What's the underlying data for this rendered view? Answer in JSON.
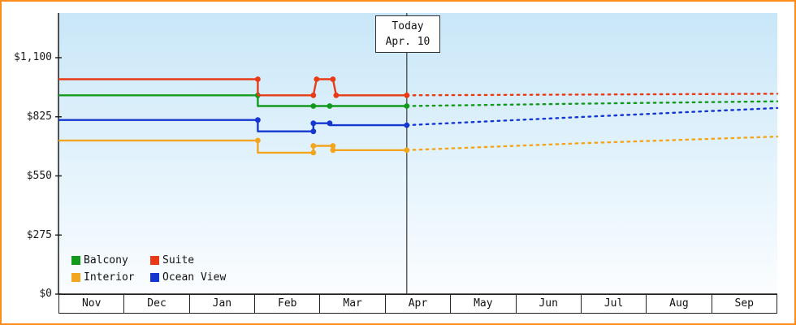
{
  "chart_data": {
    "type": "line",
    "x_axis": {
      "months": [
        "Nov",
        "Dec",
        "Jan",
        "Feb",
        "Mar",
        "Apr",
        "May",
        "Jun",
        "Jul",
        "Aug",
        "Sep"
      ]
    },
    "y_axis": {
      "tick_labels": [
        "$0",
        "$275",
        "$550",
        "$825",
        "$1,100"
      ],
      "tick_values": [
        0,
        275,
        550,
        825,
        1100
      ],
      "min": 0,
      "max": 1100
    },
    "today": {
      "label": "Today",
      "date": "Apr. 10",
      "month_position": 5.33
    },
    "series": [
      {
        "id": "interior",
        "name": "Interior",
        "color": "#f2a51e",
        "history": [
          [
            0,
            715
          ],
          [
            3.05,
            715
          ],
          [
            3.05,
            658
          ],
          [
            3.9,
            658
          ],
          [
            3.9,
            690
          ],
          [
            4.2,
            690
          ],
          [
            4.2,
            670
          ],
          [
            5.33,
            670
          ]
        ],
        "forecast": [
          [
            5.33,
            670
          ],
          [
            8,
            702
          ],
          [
            11,
            733
          ]
        ],
        "markers": [
          [
            3.05,
            715
          ],
          [
            3.9,
            658
          ],
          [
            3.9,
            690
          ],
          [
            4.2,
            690
          ],
          [
            4.2,
            670
          ],
          [
            5.33,
            670
          ]
        ]
      },
      {
        "id": "oceanview",
        "name": "Ocean View",
        "color": "#1537cf",
        "history": [
          [
            0,
            810
          ],
          [
            3.05,
            810
          ],
          [
            3.05,
            757
          ],
          [
            3.9,
            757
          ],
          [
            3.9,
            795
          ],
          [
            4.15,
            795
          ],
          [
            4.15,
            786
          ],
          [
            5.33,
            786
          ]
        ],
        "forecast": [
          [
            5.33,
            786
          ],
          [
            8,
            824
          ],
          [
            11,
            866
          ]
        ],
        "markers": [
          [
            3.05,
            810
          ],
          [
            3.9,
            757
          ],
          [
            3.9,
            795
          ],
          [
            4.15,
            795
          ],
          [
            5.33,
            786
          ]
        ]
      },
      {
        "id": "balcony",
        "name": "Balcony",
        "color": "#139a1d",
        "history": [
          [
            0,
            925
          ],
          [
            3.05,
            925
          ],
          [
            3.05,
            875
          ],
          [
            5.33,
            875
          ]
        ],
        "forecast": [
          [
            5.33,
            875
          ],
          [
            8,
            886
          ],
          [
            11,
            897
          ]
        ],
        "markers": [
          [
            3.05,
            925
          ],
          [
            3.9,
            875
          ],
          [
            4.15,
            875
          ],
          [
            5.33,
            875
          ]
        ]
      },
      {
        "id": "suite",
        "name": "Suite",
        "color": "#e83a17",
        "history": [
          [
            0,
            1000
          ],
          [
            3.05,
            1000
          ],
          [
            3.05,
            925
          ],
          [
            3.9,
            925
          ],
          [
            3.95,
            1000
          ],
          [
            4.2,
            1000
          ],
          [
            4.25,
            925
          ],
          [
            5.33,
            925
          ]
        ],
        "forecast": [
          [
            5.33,
            925
          ],
          [
            11,
            932
          ]
        ],
        "markers": [
          [
            3.05,
            1000
          ],
          [
            3.9,
            925
          ],
          [
            3.95,
            1000
          ],
          [
            4.2,
            1000
          ],
          [
            4.25,
            925
          ],
          [
            5.33,
            925
          ]
        ]
      }
    ],
    "legend": {
      "items": [
        {
          "label": "Balcony",
          "color": "#139a1d"
        },
        {
          "label": "Suite",
          "color": "#e83a17"
        },
        {
          "label": "Interior",
          "color": "#f2a51e"
        },
        {
          "label": "Ocean View",
          "color": "#1537cf"
        }
      ]
    },
    "layout": {
      "grid": false,
      "legend_position": "bottom-left",
      "border_color": "#ff8c1a"
    }
  }
}
